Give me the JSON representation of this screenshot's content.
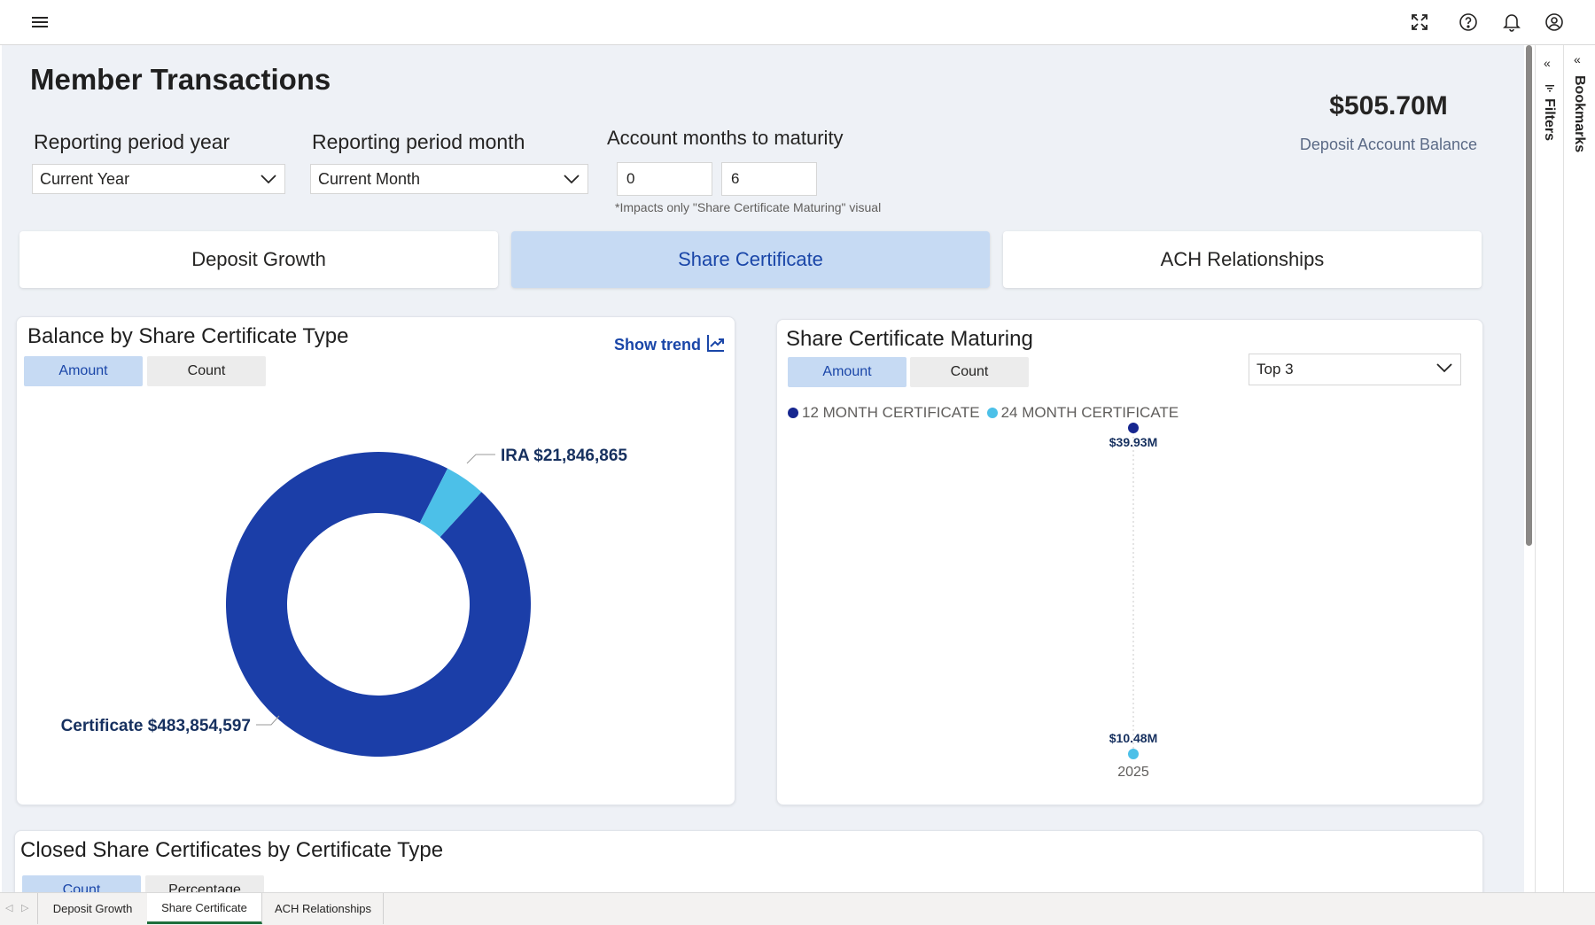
{
  "topbar": {
    "menu_icon": "hamburger-icon",
    "fullscreen_icon": "expand-icon",
    "help_icon": "help-icon",
    "bell_icon": "bell-icon",
    "account_icon": "account-icon"
  },
  "page": {
    "title": "Member Transactions"
  },
  "filters": {
    "year_label": "Reporting period year",
    "year_value": "Current Year",
    "month_label": "Reporting period month",
    "month_value": "Current Month",
    "maturity_label": "Account months to maturity",
    "maturity_min": "0",
    "maturity_max": "6",
    "maturity_note": "*Impacts only \"Share Certificate Maturing\" visual"
  },
  "kpi": {
    "value": "$505.70M",
    "label": "Deposit Account Balance"
  },
  "nav_tabs": [
    {
      "label": "Deposit Growth",
      "active": false
    },
    {
      "label": "Share Certificate",
      "active": true
    },
    {
      "label": "ACH Relationships",
      "active": false
    }
  ],
  "balance_card": {
    "title": "Balance by Share Certificate Type",
    "toggle_amount": "Amount",
    "toggle_count": "Count",
    "show_trend": "Show trend",
    "colors": {
      "certificate": "#1b3ea8",
      "ira": "#4cc0e8"
    },
    "labels": {
      "ira": "IRA $21,846,865",
      "certificate": "Certificate $483,854,597"
    }
  },
  "maturing_card": {
    "title": "Share Certificate Maturing",
    "toggle_amount": "Amount",
    "toggle_count": "Count",
    "top_select": "Top 3",
    "legend": [
      {
        "name": "12 MONTH CERTIFICATE",
        "color": "#16268f"
      },
      {
        "name": "24 MONTH CERTIFICATE",
        "color": "#4cc0e8"
      }
    ],
    "point_labels": {
      "p12": "$39.93M",
      "p24": "$10.48M"
    },
    "x_tick": "2025"
  },
  "closed_card": {
    "title": "Closed Share Certificates by Certificate Type",
    "toggle_count": "Count",
    "toggle_percentage": "Percentage"
  },
  "side_panes": {
    "filters": "Filters",
    "bookmarks": "Bookmarks"
  },
  "page_tabs": [
    {
      "label": "Deposit Growth",
      "active": false
    },
    {
      "label": "Share Certificate",
      "active": true
    },
    {
      "label": "ACH Relationships",
      "active": false
    }
  ],
  "chart_data": [
    {
      "type": "pie",
      "title": "Balance by Share Certificate Type",
      "categories": [
        "Certificate",
        "IRA"
      ],
      "values": [
        483854597,
        21846865
      ],
      "donut": true
    },
    {
      "type": "scatter",
      "title": "Share Certificate Maturing",
      "x": [
        "2025"
      ],
      "series": [
        {
          "name": "12 MONTH CERTIFICATE",
          "values": [
            39.93
          ]
        },
        {
          "name": "24 MONTH CERTIFICATE",
          "values": [
            10.48
          ]
        }
      ],
      "ylabel": "",
      "unit": "$M"
    }
  ]
}
